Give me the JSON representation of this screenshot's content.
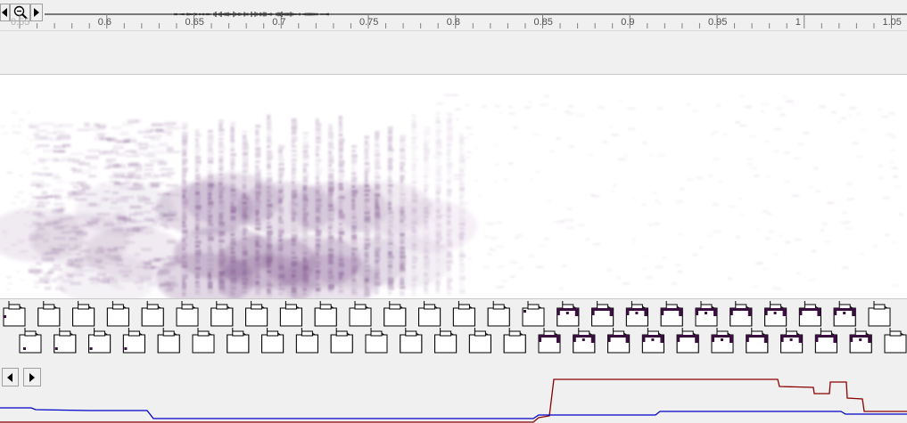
{
  "toolbar": {
    "prev_icon": "triangle-left-icon",
    "zoom_icon": "zoom-out-icon",
    "next_icon": "triangle-right-icon"
  },
  "ruler": {
    "ticks": [
      "0.55",
      "0.6",
      "0.65",
      "0.7",
      "0.75",
      "0.8",
      "0.85",
      "0.9",
      "0.95",
      "1",
      "1.05"
    ],
    "range": [
      0.55,
      1.06
    ]
  },
  "spectrogram": {
    "color": "#6b3a7a"
  },
  "frames": {
    "row1_count": 26,
    "row2_count": 26,
    "active_color": "#3a0f3f"
  },
  "bottom_nav": {
    "prev_icon": "triangle-left-icon",
    "next_icon": "triangle-right-icon"
  },
  "traces": {
    "red_color": "#8b0000",
    "blue_color": "#0000c8"
  }
}
